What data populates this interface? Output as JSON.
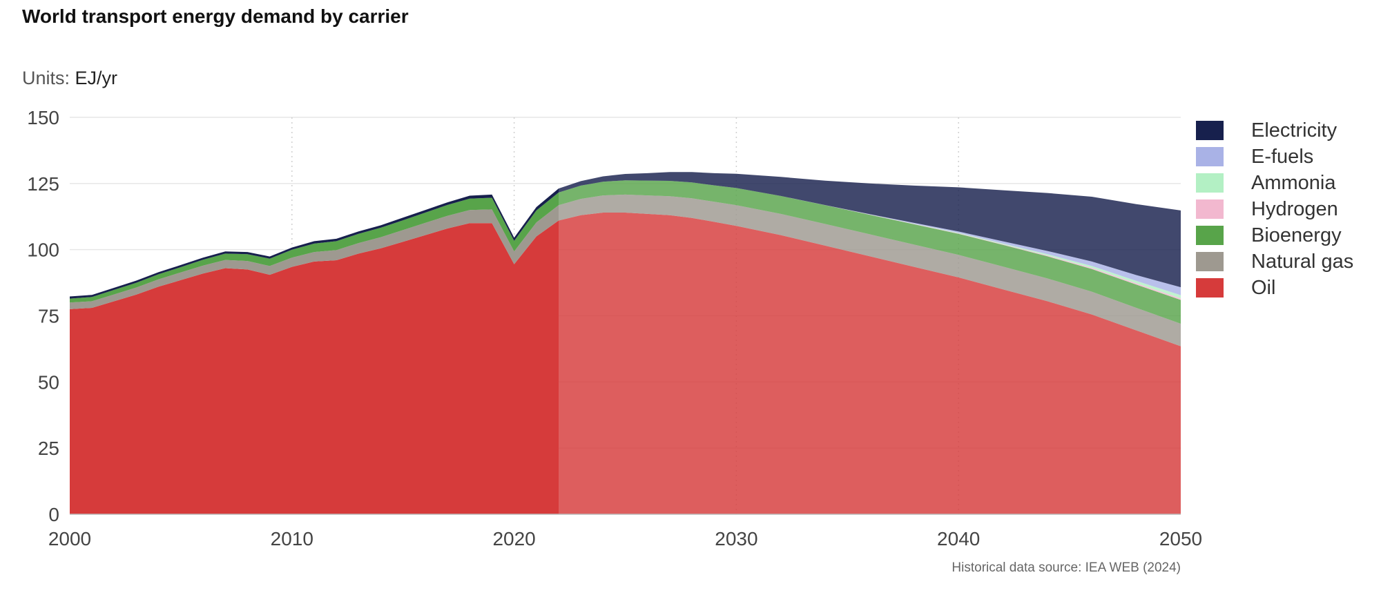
{
  "title": "World transport energy demand by carrier",
  "units_label": "Units:",
  "units_value": "EJ/yr",
  "source": "Historical data source: IEA WEB (2024)",
  "chart_data": {
    "type": "area",
    "stacked": true,
    "xlim": [
      2000,
      2050
    ],
    "ylim": [
      0,
      150
    ],
    "x_ticks": [
      2000,
      2010,
      2020,
      2030,
      2040,
      2050
    ],
    "y_ticks": [
      0,
      25,
      50,
      75,
      100,
      125,
      150
    ],
    "historical_end": 2022,
    "grid": true,
    "legend_position": "right",
    "x": [
      2000,
      2001,
      2002,
      2003,
      2004,
      2005,
      2006,
      2007,
      2008,
      2009,
      2010,
      2011,
      2012,
      2013,
      2014,
      2015,
      2016,
      2017,
      2018,
      2019,
      2020,
      2021,
      2022,
      2023,
      2024,
      2025,
      2026,
      2027,
      2028,
      2029,
      2030,
      2032,
      2034,
      2036,
      2038,
      2040,
      2042,
      2044,
      2046,
      2048,
      2050
    ],
    "series": [
      {
        "name": "Oil",
        "color": "#d63b3b",
        "values": [
          77.5,
          78,
          80.5,
          83,
          86,
          88.5,
          91,
          93,
          92.5,
          90.5,
          93.5,
          95.5,
          96,
          98.5,
          100.5,
          103,
          105.5,
          108,
          110,
          110,
          94.5,
          105,
          111,
          113,
          114,
          114,
          113.5,
          113,
          112,
          110.5,
          109,
          105.5,
          101.5,
          97.5,
          93.5,
          89.5,
          85,
          80.5,
          75.5,
          69.5,
          63.5
        ]
      },
      {
        "name": "Natural gas",
        "color": "#9e9990",
        "values": [
          2.5,
          2.5,
          2.6,
          2.7,
          2.8,
          2.9,
          3,
          3.1,
          3.2,
          3.3,
          3.5,
          3.6,
          3.8,
          4,
          4.2,
          4.4,
          4.6,
          4.8,
          5,
          5.2,
          4.8,
          5.3,
          5.8,
          6.2,
          6.5,
          6.8,
          7,
          7.2,
          7.4,
          7.6,
          7.8,
          8,
          8.2,
          8.3,
          8.4,
          8.5,
          8.6,
          8.6,
          8.6,
          8.5,
          8.5
        ]
      },
      {
        "name": "Bioenergy",
        "color": "#58a44a",
        "values": [
          1.5,
          1.6,
          1.7,
          1.8,
          1.9,
          2,
          2.2,
          2.4,
          2.6,
          2.8,
          3,
          3.2,
          3.4,
          3.5,
          3.6,
          3.7,
          3.9,
          4.1,
          4.3,
          4.4,
          4,
          4.5,
          4.8,
          5,
          5.2,
          5.4,
          5.6,
          5.8,
          6,
          6.2,
          6.5,
          6.8,
          7.1,
          7.4,
          7.7,
          8,
          8.2,
          8.4,
          8.6,
          8.8,
          9
        ]
      },
      {
        "name": "Hydrogen",
        "color": "#f2b8cf",
        "values": [
          0,
          0,
          0,
          0,
          0,
          0,
          0,
          0,
          0,
          0,
          0,
          0,
          0,
          0,
          0,
          0,
          0,
          0,
          0,
          0,
          0,
          0,
          0,
          0,
          0,
          0,
          0,
          0,
          0,
          0,
          0,
          0,
          0,
          0.05,
          0.1,
          0.15,
          0.2,
          0.3,
          0.4,
          0.5,
          0.6
        ]
      },
      {
        "name": "Ammonia",
        "color": "#b3f0c4",
        "values": [
          0,
          0,
          0,
          0,
          0,
          0,
          0,
          0,
          0,
          0,
          0,
          0,
          0,
          0,
          0,
          0,
          0,
          0,
          0,
          0,
          0,
          0,
          0,
          0,
          0,
          0,
          0,
          0,
          0,
          0,
          0,
          0,
          0,
          0.05,
          0.1,
          0.2,
          0.35,
          0.5,
          0.7,
          0.9,
          1.2
        ]
      },
      {
        "name": "E-fuels",
        "color": "#a9b2e6",
        "values": [
          0,
          0,
          0,
          0,
          0,
          0,
          0,
          0,
          0,
          0,
          0,
          0,
          0,
          0,
          0,
          0,
          0,
          0,
          0,
          0,
          0,
          0,
          0,
          0,
          0,
          0,
          0,
          0,
          0,
          0,
          0,
          0,
          0.05,
          0.1,
          0.3,
          0.5,
          0.8,
          1.2,
          1.7,
          2.2,
          3
        ]
      },
      {
        "name": "Electricity",
        "color": "#17204d",
        "values": [
          0.8,
          0.8,
          0.8,
          0.8,
          0.8,
          0.8,
          0.8,
          0.8,
          0.8,
          0.8,
          0.8,
          0.9,
          0.9,
          0.9,
          0.9,
          1,
          1,
          1,
          1.1,
          1.2,
          1.2,
          1.3,
          1.5,
          1.7,
          2,
          2.4,
          2.8,
          3.3,
          3.9,
          4.6,
          5.4,
          7.2,
          9.2,
          11.6,
          14.1,
          16.7,
          19.3,
          21.9,
          24.5,
          26.8,
          29
        ]
      }
    ]
  }
}
